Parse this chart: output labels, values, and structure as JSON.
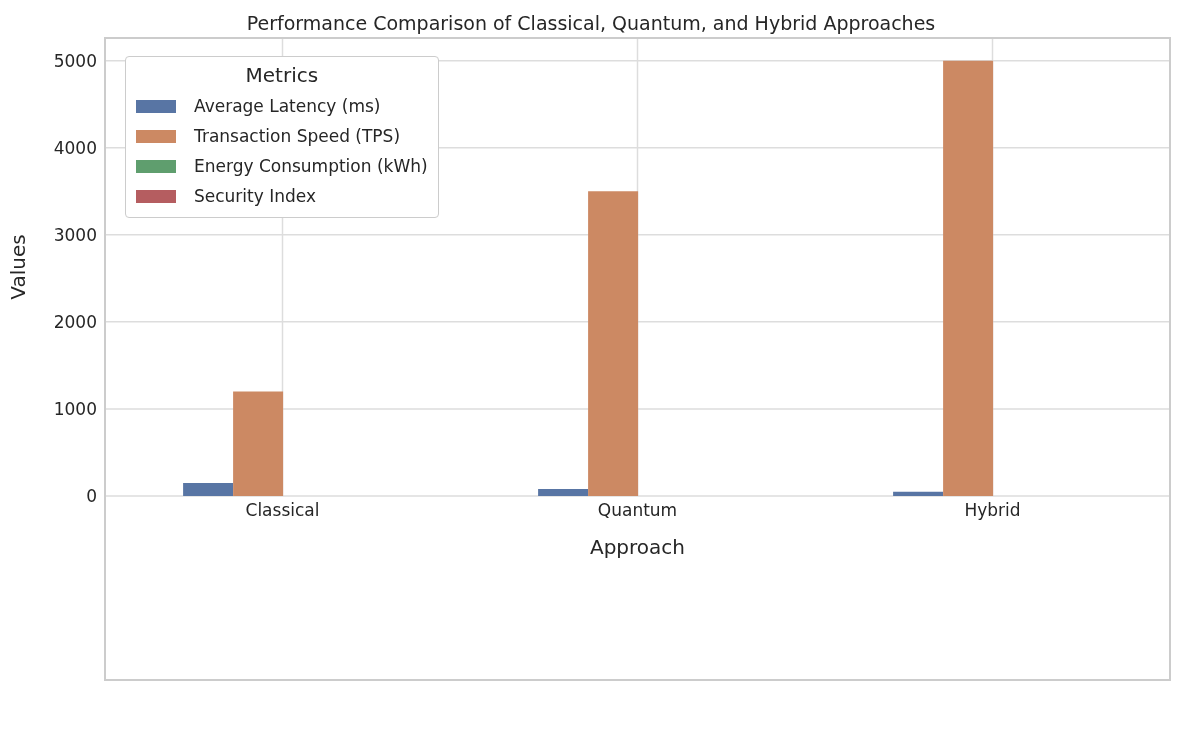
{
  "chart_data": {
    "type": "bar",
    "title": "Performance Comparison of Classical, Quantum, and Hybrid Approaches",
    "xlabel": "Approach",
    "ylabel": "Values",
    "legend_title": "Metrics",
    "categories": [
      "Classical",
      "Quantum",
      "Hybrid"
    ],
    "series": [
      {
        "name": "Average Latency (ms)",
        "color": "#5875a4",
        "values": [
          150,
          80,
          50
        ]
      },
      {
        "name": "Transaction Speed (TPS)",
        "color": "#cc8963",
        "values": [
          1200,
          3500,
          5000
        ]
      },
      {
        "name": "Energy Consumption (kWh)",
        "color": "#5f9e6e",
        "values": [
          0,
          0,
          0
        ]
      },
      {
        "name": "Security Index",
        "color": "#b55d60",
        "values": [
          0,
          0,
          0
        ]
      }
    ],
    "ylim": [
      0,
      5260
    ],
    "yticks": [
      0,
      1000,
      2000,
      3000,
      4000,
      5000
    ],
    "grid": true,
    "legend": "top left"
  }
}
